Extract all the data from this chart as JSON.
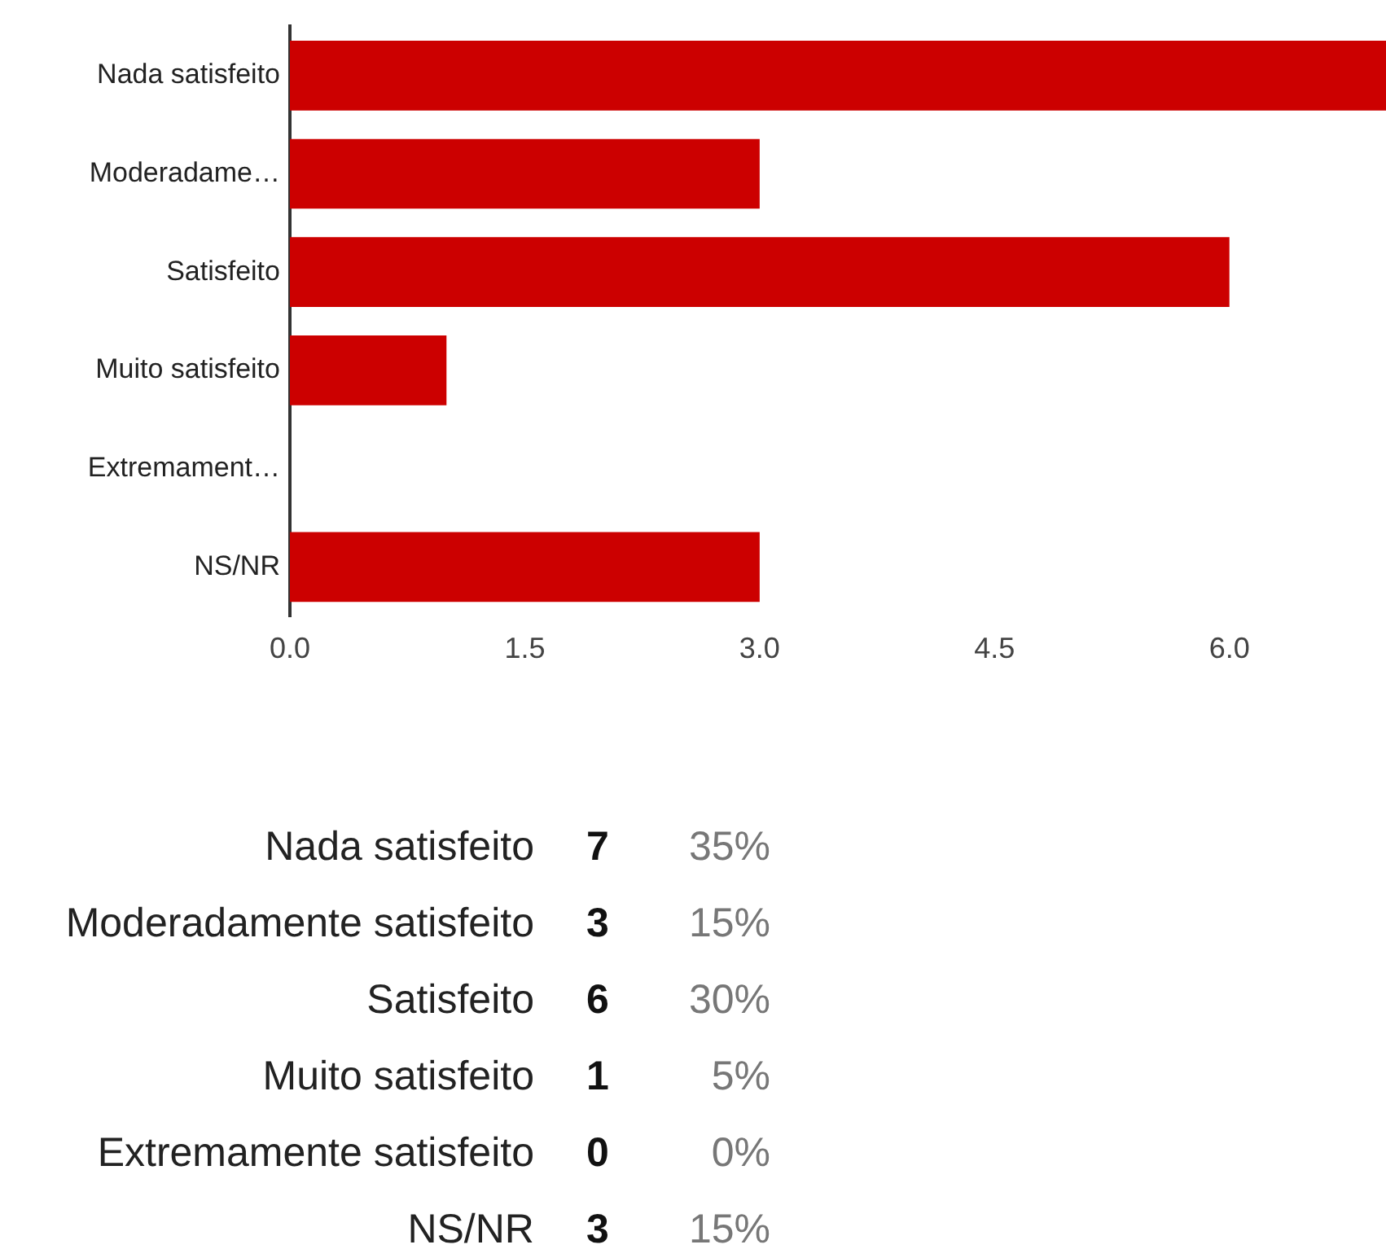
{
  "chart_data": {
    "type": "bar",
    "orientation": "horizontal",
    "categories": [
      "Nada satisfeito",
      "Moderadame…",
      "Satisfeito",
      "Muito satisfeito",
      "Extremament…",
      "NS/NR"
    ],
    "values": [
      7,
      3,
      6,
      1,
      0,
      3
    ],
    "annotations": [
      "Nada satisfeito",
      "7",
      "35%",
      "Moderadamente satisfeito",
      "3",
      "15%",
      "Satisfeito",
      "6",
      "30%",
      "Muito satisfeito",
      "1",
      "5%",
      "Extremamente satisfeito",
      "0",
      "0%",
      "NS/NR",
      "3",
      "15%"
    ],
    "color": "#cc0000",
    "xlim": [
      0,
      7
    ],
    "xticks": [
      {
        "value": 0,
        "label": "0.0"
      },
      1.5,
      {
        "value": 3,
        "label": "3.0"
      },
      4.5,
      {
        "value": 6,
        "label": "6.0"
      }
    ],
    "grid": false,
    "legend": false
  }
}
